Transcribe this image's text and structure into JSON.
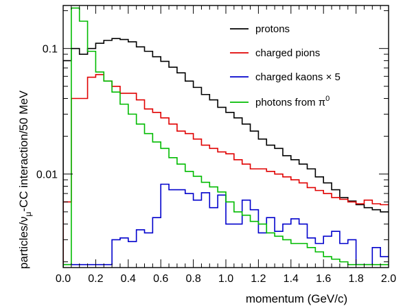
{
  "chart_data": {
    "type": "line",
    "step": true,
    "xlabel": "momentum (GeV/c)",
    "ylabel": "particles/ν",
    "ylabel_sub": "μ",
    "ylabel_rest": "-CC interaction/50 MeV",
    "xlim": [
      0,
      2.0
    ],
    "ylim": [
      0.0018,
      0.22
    ],
    "yscale": "log",
    "bin_width": 0.05,
    "x_ticks": [
      "0.0",
      "0.2",
      "0.4",
      "0.6",
      "0.8",
      "1.0",
      "1.2",
      "1.4",
      "1.6",
      "1.8",
      "2.0"
    ],
    "y_ticks": [
      {
        "value": 0.01,
        "label": "0.01"
      },
      {
        "value": 0.1,
        "label": "0.1"
      }
    ],
    "legend_position": "top-right",
    "series": [
      {
        "name": "protons",
        "color": "#000000",
        "values": [
          0.08,
          0.1,
          0.09,
          0.1,
          0.11,
          0.116,
          0.12,
          0.118,
          0.113,
          0.103,
          0.095,
          0.086,
          0.079,
          0.071,
          0.064,
          0.055,
          0.049,
          0.043,
          0.039,
          0.034,
          0.031,
          0.028,
          0.025,
          0.022,
          0.019,
          0.017,
          0.016,
          0.014,
          0.013,
          0.012,
          0.011,
          0.0095,
          0.0085,
          0.0075,
          0.0065,
          0.0061,
          0.0057,
          0.0054,
          0.0052,
          0.005
        ]
      },
      {
        "name": "charged pions",
        "color": "#e00000",
        "values": [
          0.006,
          0.04,
          0.04,
          0.059,
          0.062,
          0.055,
          0.05,
          0.044,
          0.044,
          0.039,
          0.033,
          0.031,
          0.028,
          0.025,
          0.022,
          0.021,
          0.019,
          0.017,
          0.016,
          0.015,
          0.0145,
          0.013,
          0.012,
          0.011,
          0.011,
          0.0105,
          0.01,
          0.0095,
          0.009,
          0.0085,
          0.0078,
          0.0074,
          0.007,
          0.0065,
          0.0063,
          0.006,
          0.0058,
          0.0062,
          0.0058,
          0.0057
        ]
      },
      {
        "name": "charged kaons × 5",
        "color": "#0000cc",
        "values": [
          0.0019,
          0.0019,
          0.0019,
          0.0019,
          0.0019,
          0.0019,
          0.003,
          0.0031,
          0.0029,
          0.0036,
          0.0034,
          0.0045,
          0.0083,
          0.0075,
          0.0075,
          0.007,
          0.0062,
          0.0071,
          0.0054,
          0.0068,
          0.004,
          0.004,
          0.0062,
          0.0052,
          0.0034,
          0.0045,
          0.0035,
          0.004,
          0.0044,
          0.004,
          0.0031,
          0.0028,
          0.0032,
          0.0035,
          0.0028,
          0.003,
          0.0019,
          0.0019,
          0.0026,
          0.0022
        ]
      },
      {
        "name": "photons from π0",
        "color": "#00bb00",
        "values": [
          0.0019,
          0.21,
          0.165,
          0.095,
          0.065,
          0.055,
          0.045,
          0.036,
          0.03,
          0.025,
          0.021,
          0.018,
          0.016,
          0.0135,
          0.012,
          0.0105,
          0.0096,
          0.0086,
          0.0079,
          0.0072,
          0.006,
          0.005,
          0.0047,
          0.0042,
          0.004,
          0.0034,
          0.0032,
          0.003,
          0.0028,
          0.0028,
          0.0026,
          0.0024,
          0.0022,
          0.0021,
          0.002,
          0.0019,
          0.0019,
          0.0019,
          0.0019,
          0.0019
        ]
      }
    ]
  }
}
